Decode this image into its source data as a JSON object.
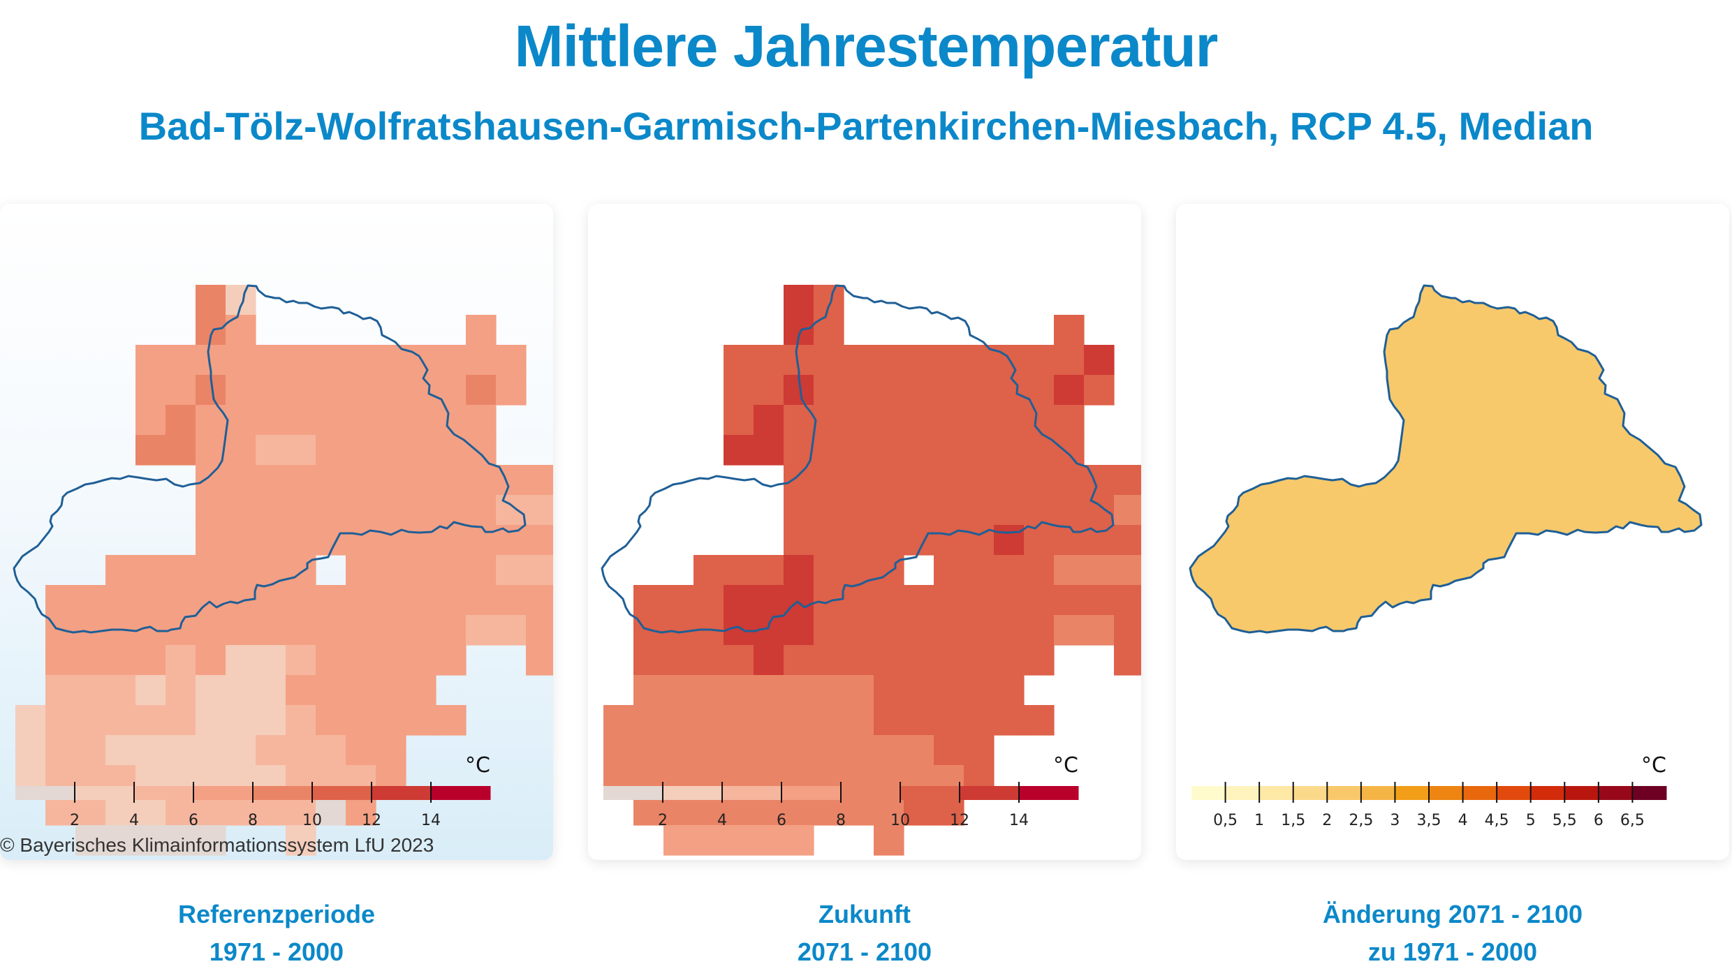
{
  "title": "Mittlere Jahrestemperatur",
  "subtitle": "Bad-Tölz-Wolfratshausen-Garmisch-Partenkirchen-Miesbach, RCP 4.5, Median",
  "copyright": "© Bayerisches Klimainformationssystem LfU 2023",
  "colors": {
    "heading": "#0b88c9",
    "outline": "#1f5f96"
  },
  "panels": [
    {
      "caption_line1": "Referenzperiode",
      "caption_line2": "1971 - 2000",
      "unit": "°C",
      "legend_colors": [
        "#e3d8d3",
        "#f5cdbb",
        "#f6b69e",
        "#f4a084",
        "#ea8467",
        "#de6149",
        "#ce3a34",
        "#b8002b"
      ],
      "legend_ticks": [
        "2",
        "4",
        "6",
        "8",
        "10",
        "12",
        "14"
      ],
      "grid_range": [
        0,
        5
      ],
      "grid": [
        "......41................",
        "......43.......3........",
        "....3333333333333.......",
        "....3343333333343.......",
        "....343333333333........",
        "....443322333333........",
        "......3333333333333.....",
        "......3333333333222.....",
        "......33333333333331....",
        "...3333333.333332221....",
        ".3333333333333333322....",
        ".3333333333333322333....",
        ".33332311233333..3......",
        ".2221211133333..........",
        "122222111233333.........",
        "1221111122233...........",
        "1222111112223...........",
        ".22112222203............",
        "..00000..1.............."
      ]
    },
    {
      "caption_line1": "Zukunft",
      "caption_line2": "2071 - 2100",
      "unit": "°C",
      "legend_colors": [
        "#e3d8d3",
        "#f5cdbb",
        "#f6b69e",
        "#f4a084",
        "#ea8467",
        "#de6149",
        "#ce3a34",
        "#b8002b"
      ],
      "legend_ticks": [
        "2",
        "4",
        "6",
        "8",
        "10",
        "12",
        "14"
      ],
      "grid_range": [
        2,
        7
      ],
      "grid": [
        "......65................",
        "......65.......5........",
        "....5555555555556.......",
        "....5565555555565.......",
        "....565555555555........",
        "....665555555555........",
        "......5555555555555.....",
        "......5555555555544.....",
        "......55555556555544....",
        "...5556555.555544444....",
        ".5556665555555555544....",
        ".5556665555555544555....",
        ".55556555555555..5......",
        ".4444444455555..........",
        "444444444555555.........",
        "4444444444455...........",
        "4444444444445...........",
        ".44444444455............",
        "..33333..4.............."
      ]
    },
    {
      "caption_line1": "Änderung 2071 - 2100",
      "caption_line2": "zu 1971 - 2000",
      "unit": "°C",
      "legend_colors": [
        "#fffbcd",
        "#fff3bd",
        "#fde8a6",
        "#fbd98b",
        "#f8c86b",
        "#f5b546",
        "#f29e18",
        "#ee8512",
        "#e9680e",
        "#e14a0c",
        "#d22c0b",
        "#b9170e",
        "#97081a",
        "#6e0024"
      ],
      "legend_ticks": [
        "0,5",
        "1",
        "1,5",
        "2",
        "2,5",
        "3",
        "3,5",
        "4",
        "4,5",
        "5",
        "5,5",
        "6",
        "6,5"
      ],
      "fill": "#f7c96b"
    }
  ]
}
